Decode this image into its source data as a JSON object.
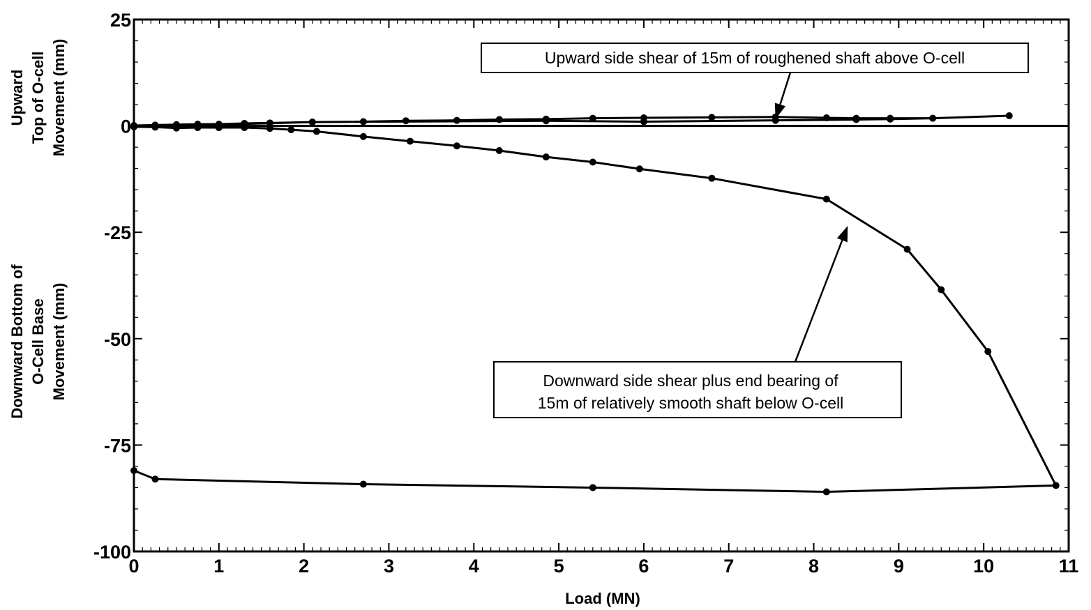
{
  "chart_data": {
    "type": "line",
    "xlabel": "Load (MN)",
    "ylabel_upper": [
      "Upward",
      "Top of O-cell",
      "Movement (mm)"
    ],
    "ylabel_lower": [
      "Downward Bottom of",
      "O-Cell Base",
      "Movement (mm)"
    ],
    "xlim": [
      0,
      11
    ],
    "ylim": [
      -100,
      25
    ],
    "x_ticks": [
      0,
      1,
      2,
      3,
      4,
      5,
      6,
      7,
      8,
      9,
      10,
      11
    ],
    "y_ticks": [
      25,
      0,
      -25,
      -50,
      -75,
      -100
    ],
    "grid": false,
    "series": [
      {
        "key": "upward",
        "x": [
          0,
          0.25,
          0.5,
          0.75,
          1.0,
          1.3,
          1.6,
          2.1,
          2.7,
          3.2,
          3.8,
          4.3,
          4.85,
          5.4,
          6.0,
          6.8,
          7.55,
          8.15,
          8.5,
          8.9,
          9.4,
          10.3,
          9.4,
          8.9,
          8.5,
          7.55,
          6.0,
          4.85,
          2.1,
          0
        ],
        "y": [
          0.1,
          0.2,
          0.3,
          0.4,
          0.4,
          0.6,
          0.7,
          0.9,
          1.0,
          1.2,
          1.3,
          1.5,
          1.6,
          1.8,
          1.9,
          2.0,
          2.1,
          1.9,
          1.8,
          1.8,
          1.8,
          2.4,
          1.8,
          1.6,
          1.5,
          1.3,
          1.0,
          1.2,
          0.9,
          -0.2
        ]
      },
      {
        "key": "downward",
        "x": [
          0,
          0.25,
          0.5,
          0.75,
          1.0,
          1.3,
          1.6,
          1.85,
          2.15,
          2.7,
          3.25,
          3.8,
          4.3,
          4.85,
          5.4,
          5.95,
          6.8,
          8.15,
          9.1,
          9.5,
          10.05,
          10.85,
          8.15,
          5.4,
          2.7,
          0.25,
          0
        ],
        "y": [
          -0.2,
          -0.3,
          -0.5,
          -0.4,
          -0.4,
          -0.4,
          -0.6,
          -0.9,
          -1.3,
          -2.5,
          -3.6,
          -4.7,
          -5.8,
          -7.3,
          -8.5,
          -10.1,
          -12.3,
          -17.2,
          -29.0,
          -38.5,
          -53.0,
          -84.5,
          -86.0,
          -85.0,
          -84.2,
          -83.0,
          -81.0
        ]
      }
    ],
    "annotations": [
      {
        "key": "upper",
        "text": "Upward side shear of 15m of roughened shaft above O-cell",
        "points_to": [
          7.55,
          1.6
        ]
      },
      {
        "key": "lower",
        "text_lines": [
          "Downward side shear plus end bearing of",
          "15m of relatively smooth shaft below O-cell"
        ],
        "points_to": [
          8.4,
          -23.5
        ]
      }
    ]
  }
}
